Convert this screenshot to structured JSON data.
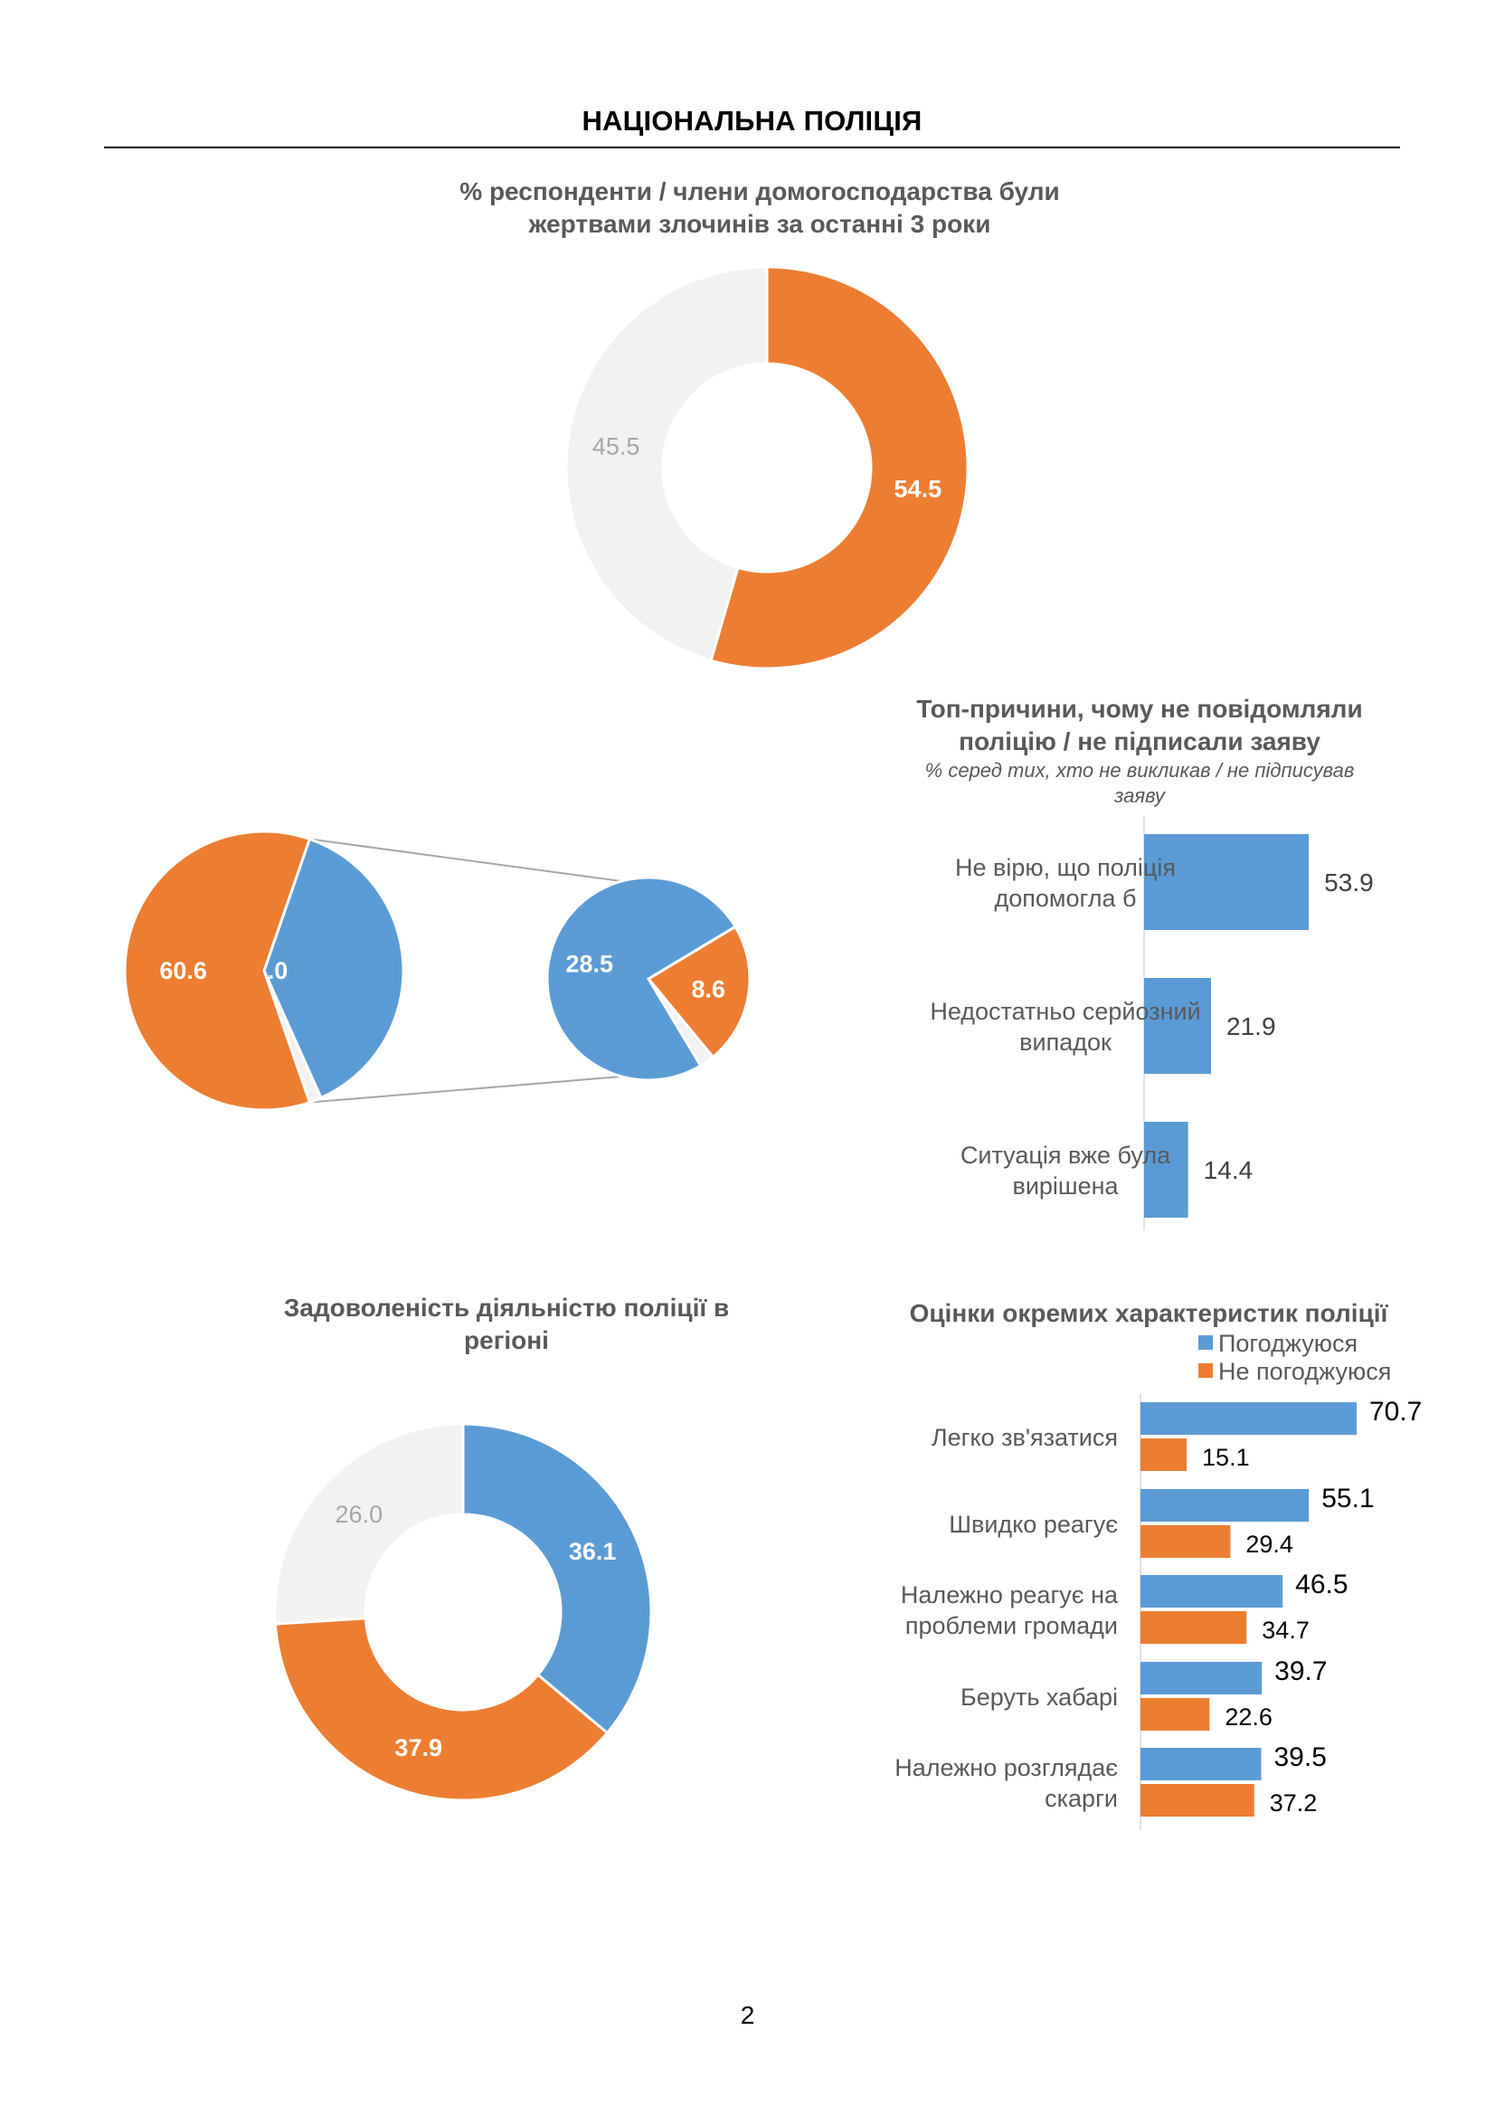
{
  "page": {
    "heading": "НАЦІОНАЛЬНА ПОЛІЦІЯ",
    "page_number": "2"
  },
  "colors": {
    "orange": "#ED7D31",
    "blue": "#5B9BD5",
    "grey": "#F2F2F2",
    "text": "#595959"
  },
  "chart_data": [
    {
      "id": "victims",
      "type": "pie",
      "variant": "doughnut",
      "title": "% респонденти / члени домогосподарства були жертвами злочинів за останні 3 роки",
      "title_lines": [
        "% респонденти / члени домогосподарства були",
        "жертвами злочинів за останні 3 роки"
      ],
      "slices": [
        {
          "value": 54.5,
          "label": "54.5",
          "color": "#ED7D31"
        },
        {
          "value": 45.5,
          "label": "45.5",
          "color": "#F2F2F2"
        }
      ]
    },
    {
      "id": "reported",
      "type": "pie",
      "variant": "pie-of-pie",
      "title": "",
      "main_slices": [
        {
          "value": 60.6,
          "label": "60.6",
          "color": "#ED7D31"
        },
        {
          "value": 38.0,
          "label": "38.0",
          "color": "#5B9BD5"
        },
        {
          "value": 1.4,
          "label": "",
          "color": "#F2F2F2"
        }
      ],
      "secondary_slices": [
        {
          "value": 28.5,
          "label": "28.5",
          "color": "#5B9BD5"
        },
        {
          "value": 8.6,
          "label": "8.6",
          "color": "#ED7D31"
        },
        {
          "value": 0.9,
          "label": "",
          "color": "#F2F2F2"
        }
      ]
    },
    {
      "id": "reasons",
      "type": "bar",
      "orientation": "horizontal",
      "title": "Топ-причини, чому не повідомляли поліцію / не підписали заяву",
      "title_lines": [
        "Топ-причини, чому не повідомляли",
        "поліцію / не підписали заяву"
      ],
      "subtitle_lines": [
        "% серед тих, хто не викликав / не підписував",
        "заяву"
      ],
      "categories": [
        [
          "Не вірю, що поліція",
          "допомогла б"
        ],
        [
          "Недостатньо серйозний",
          "випадок"
        ],
        [
          "Ситуація вже була",
          "вирішена"
        ]
      ],
      "values": [
        53.9,
        21.9,
        14.4
      ],
      "labels": [
        "53.9",
        "21.9",
        "14.4"
      ],
      "color": "#5B9BD5",
      "xlim": [
        0,
        100
      ]
    },
    {
      "id": "satisfaction",
      "type": "pie",
      "variant": "doughnut",
      "title": "Задоволеність діяльністю поліції в регіоні",
      "title_lines": [
        "Задоволеність діяльністю поліції в",
        "регіоні"
      ],
      "slices": [
        {
          "value": 36.1,
          "label": "36.1",
          "color": "#5B9BD5"
        },
        {
          "value": 37.9,
          "label": "37.9",
          "color": "#ED7D31"
        },
        {
          "value": 26.0,
          "label": "26.0",
          "color": "#F2F2F2"
        }
      ]
    },
    {
      "id": "ratings",
      "type": "bar",
      "orientation": "horizontal",
      "title": "Оцінки окремих характеристик поліції",
      "legend_position": "top-right",
      "categories": [
        [
          "Легко зв'язатися"
        ],
        [
          "Швидко реагує"
        ],
        [
          "Належно реагує на",
          "проблеми громади"
        ],
        [
          "Беруть хабарі"
        ],
        [
          "Належно розглядає",
          "скарги"
        ]
      ],
      "series": [
        {
          "name": "Погоджуюся",
          "color": "#5B9BD5",
          "values": [
            70.7,
            55.1,
            46.5,
            39.7,
            39.5
          ],
          "labels": [
            "70.7",
            "55.1",
            "46.5",
            "39.7",
            "39.5"
          ]
        },
        {
          "name": "Не погоджуюся",
          "color": "#ED7D31",
          "values": [
            15.1,
            29.4,
            34.7,
            22.6,
            37.2
          ],
          "labels": [
            "15.1",
            "29.4",
            "34.7",
            "22.6",
            "37.2"
          ]
        }
      ],
      "xlim": [
        0,
        100
      ]
    }
  ]
}
